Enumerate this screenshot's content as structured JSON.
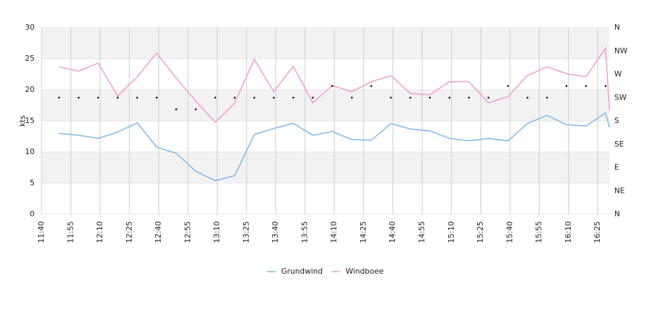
{
  "chart_data": {
    "type": "line",
    "y_label": "kts",
    "x": [
      "11:49",
      "11:59",
      "12:09",
      "12:19",
      "12:29",
      "12:39",
      "12:49",
      "12:59",
      "13:09",
      "13:19",
      "13:29",
      "13:39",
      "13:49",
      "13:59",
      "14:09",
      "14:19",
      "14:29",
      "14:39",
      "14:49",
      "14:59",
      "15:09",
      "15:19",
      "15:29",
      "15:39",
      "15:49",
      "15:59",
      "16:09",
      "16:19",
      "16:29",
      "16:31"
    ],
    "xlim": [
      "11:40",
      "16:31"
    ],
    "xticks": [
      "11:40",
      "11:55",
      "12:10",
      "12:25",
      "12:40",
      "12:55",
      "13:10",
      "13:25",
      "13:40",
      "13:55",
      "14:10",
      "14:25",
      "14:40",
      "14:55",
      "15:10",
      "15:25",
      "15:40",
      "15:55",
      "16:10",
      "16:25"
    ],
    "ylim": [
      0,
      30
    ],
    "yticks": [
      0,
      5,
      10,
      15,
      20,
      25,
      30
    ],
    "y2lim": [
      0,
      360
    ],
    "y2ticks": [
      {
        "value": 0,
        "label": "N"
      },
      {
        "value": 45,
        "label": "NE"
      },
      {
        "value": 90,
        "label": "E"
      },
      {
        "value": 135,
        "label": "SE"
      },
      {
        "value": 180,
        "label": "S"
      },
      {
        "value": 225,
        "label": "SW"
      },
      {
        "value": 270,
        "label": "W"
      },
      {
        "value": 315,
        "label": "NW"
      },
      {
        "value": 360,
        "label": "N"
      }
    ],
    "grid": true,
    "legend": "bottom",
    "series": [
      {
        "name": "Grundwind",
        "color": "#7cb5ec",
        "values": [
          13.0,
          12.7,
          12.2,
          13.2,
          14.7,
          10.8,
          9.8,
          6.9,
          5.4,
          6.2,
          12.8,
          13.8,
          14.6,
          12.7,
          13.3,
          12.0,
          11.9,
          14.6,
          13.7,
          13.4,
          12.2,
          11.8,
          12.2,
          11.8,
          14.6,
          15.9,
          14.4,
          14.2,
          16.3,
          14.0
        ]
      },
      {
        "name": "Windboee",
        "color": "#f29bc8",
        "values": [
          23.7,
          23.0,
          24.3,
          19.0,
          22.1,
          25.9,
          21.9,
          18.2,
          14.8,
          17.9,
          24.9,
          19.7,
          23.8,
          17.9,
          20.7,
          19.7,
          21.3,
          22.3,
          19.4,
          19.2,
          21.3,
          21.3,
          17.9,
          18.9,
          22.3,
          23.7,
          22.6,
          22.1,
          26.7,
          16.7
        ]
      }
    ],
    "direction": {
      "axis": "y2",
      "color": "#000000",
      "values": [
        225,
        225,
        225,
        225,
        225,
        225,
        202.5,
        202.5,
        225,
        225,
        225,
        225,
        225,
        225,
        247.5,
        225,
        247.5,
        225,
        225,
        225,
        225,
        225,
        225,
        247.5,
        225,
        225,
        247.5,
        247.5,
        247.5,
        null
      ]
    }
  }
}
